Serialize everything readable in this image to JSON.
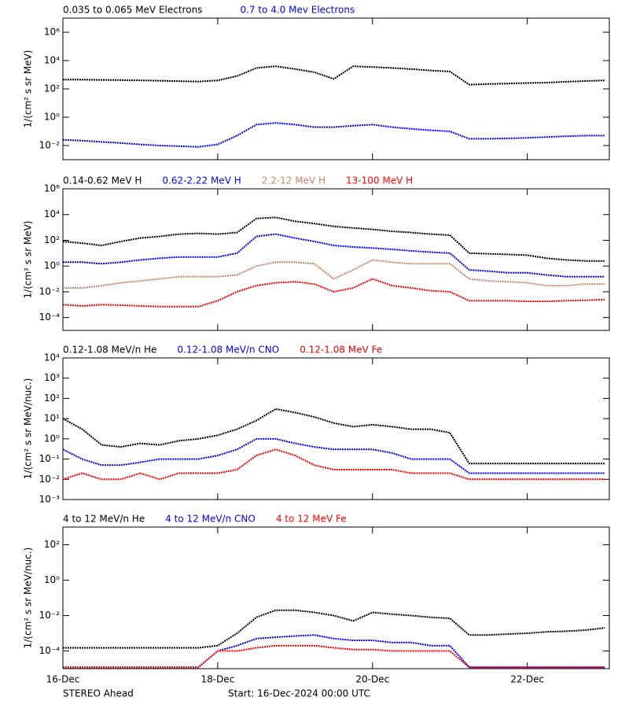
{
  "chart_data": [
    {
      "type": "scatter",
      "log_y": true,
      "ylabel": "1/(cm² s sr MeV)",
      "x": [
        0,
        0.25,
        0.5,
        0.75,
        1,
        1.25,
        1.5,
        1.75,
        2,
        2.25,
        2.5,
        2.75,
        3,
        3.25,
        3.5,
        3.75,
        4,
        4.25,
        4.5,
        4.75,
        5,
        5.25,
        5.5,
        5.75,
        6,
        6.25,
        6.5,
        6.75,
        7
      ],
      "xlim": [
        0,
        7.06
      ],
      "ylim": [
        0.001,
        10000000
      ],
      "yticks": [
        {
          "value": 0.01,
          "label": "10⁻²"
        },
        {
          "value": 1,
          "label": "10⁰"
        },
        {
          "value": 100,
          "label": "10²"
        },
        {
          "value": 10000,
          "label": "10⁴"
        },
        {
          "value": 1000000,
          "label": "10⁶"
        }
      ],
      "series": [
        {
          "name": "0.035 to 0.065 MeV Electrons",
          "color": "#000000",
          "values": [
            450,
            450,
            430,
            420,
            400,
            380,
            350,
            330,
            400,
            800,
            3000,
            4000,
            2500,
            1500,
            500,
            4000,
            3500,
            3000,
            2500,
            2000,
            1700,
            200,
            220,
            240,
            260,
            280,
            320,
            360,
            400
          ]
        },
        {
          "name": "0.7 to 4.0 Mev Electrons",
          "color": "#0000ff",
          "values": [
            0.025,
            0.022,
            0.018,
            0.015,
            0.012,
            0.01,
            0.009,
            0.008,
            0.012,
            0.05,
            0.3,
            0.4,
            0.3,
            0.2,
            0.2,
            0.25,
            0.3,
            0.2,
            0.15,
            0.12,
            0.1,
            0.03,
            0.03,
            0.032,
            0.035,
            0.04,
            0.045,
            0.05,
            0.05
          ]
        }
      ]
    },
    {
      "type": "scatter",
      "log_y": true,
      "ylabel": "1/(cm² s sr MeV)",
      "x": [
        0,
        0.25,
        0.5,
        0.75,
        1,
        1.25,
        1.5,
        1.75,
        2,
        2.25,
        2.5,
        2.75,
        3,
        3.25,
        3.5,
        3.75,
        4,
        4.25,
        4.5,
        4.75,
        5,
        5.25,
        5.5,
        5.75,
        6,
        6.25,
        6.5,
        6.75,
        7
      ],
      "xlim": [
        0,
        7.06
      ],
      "ylim": [
        1e-05,
        1000000
      ],
      "yticks": [
        {
          "value": 0.0001,
          "label": "10⁻⁴"
        },
        {
          "value": 0.01,
          "label": "10⁻²"
        },
        {
          "value": 1,
          "label": "10⁰"
        },
        {
          "value": 100,
          "label": "10²"
        },
        {
          "value": 10000,
          "label": "10⁴"
        },
        {
          "value": 1000000,
          "label": "10⁶"
        }
      ],
      "series": [
        {
          "name": "0.14-0.62 MeV H",
          "color": "#000000",
          "values": [
            80,
            60,
            40,
            80,
            150,
            200,
            300,
            350,
            300,
            400,
            5000,
            6000,
            3000,
            2000,
            1200,
            900,
            700,
            500,
            400,
            300,
            250,
            10,
            9,
            8,
            7,
            4,
            3,
            2.5,
            2.5
          ]
        },
        {
          "name": "0.62-2.22 MeV H",
          "color": "#0000ff",
          "values": [
            2,
            2,
            1.5,
            2,
            3,
            4,
            5,
            5,
            5,
            10,
            200,
            300,
            150,
            80,
            40,
            30,
            25,
            20,
            15,
            12,
            10,
            0.5,
            0.4,
            0.3,
            0.3,
            0.2,
            0.15,
            0.15,
            0.15
          ]
        },
        {
          "name": "2.2-12 MeV H",
          "color": "#c8866a",
          "values": [
            0.02,
            0.02,
            0.03,
            0.05,
            0.07,
            0.1,
            0.15,
            0.15,
            0.15,
            0.2,
            1,
            2,
            2,
            1.5,
            0.1,
            0.5,
            3,
            2,
            1.5,
            1.5,
            1.5,
            0.1,
            0.07,
            0.06,
            0.05,
            0.03,
            0.03,
            0.04,
            0.04
          ]
        },
        {
          "name": "13-100 MeV H",
          "color": "#ff0000",
          "values": [
            0.001,
            0.0008,
            0.001,
            0.0009,
            0.0008,
            0.0007,
            0.0007,
            0.0007,
            0.002,
            0.01,
            0.03,
            0.05,
            0.06,
            0.04,
            0.01,
            0.02,
            0.1,
            0.03,
            0.02,
            0.012,
            0.01,
            0.002,
            0.002,
            0.002,
            0.0018,
            0.0018,
            0.002,
            0.0022,
            0.0025
          ]
        }
      ]
    },
    {
      "type": "scatter",
      "log_y": true,
      "ylabel": "1/(cm² s sr MeV/nuc.)",
      "x": [
        0,
        0.25,
        0.5,
        0.75,
        1,
        1.25,
        1.5,
        1.75,
        2,
        2.25,
        2.5,
        2.75,
        3,
        3.25,
        3.5,
        3.75,
        4,
        4.25,
        4.5,
        4.75,
        5,
        5.25,
        5.5,
        5.75,
        6,
        6.25,
        6.5,
        6.75,
        7
      ],
      "xlim": [
        0,
        7.06
      ],
      "ylim": [
        0.001,
        10000
      ],
      "yticks": [
        {
          "value": 0.001,
          "label": "10⁻³"
        },
        {
          "value": 0.01,
          "label": "10⁻²"
        },
        {
          "value": 0.1,
          "label": "10⁻¹"
        },
        {
          "value": 1,
          "label": "10⁰"
        },
        {
          "value": 10,
          "label": "10¹"
        },
        {
          "value": 100,
          "label": "10²"
        },
        {
          "value": 1000,
          "label": "10³"
        },
        {
          "value": 10000,
          "label": "10⁴"
        }
      ],
      "series": [
        {
          "name": "0.12-1.08 MeV/n He",
          "color": "#000000",
          "values": [
            10,
            3,
            0.5,
            0.4,
            0.6,
            0.5,
            0.8,
            1,
            1.5,
            3,
            8,
            30,
            20,
            12,
            6,
            4,
            5,
            4,
            3,
            3,
            2,
            0.06,
            0.06,
            0.06,
            0.06,
            0.06,
            0.06,
            0.06,
            0.06
          ]
        },
        {
          "name": "0.12-1.08 MeV/n CNO",
          "color": "#0000ff",
          "values": [
            0.3,
            0.1,
            0.05,
            0.05,
            0.07,
            0.1,
            0.1,
            0.1,
            0.15,
            0.3,
            1,
            1,
            0.6,
            0.4,
            0.3,
            0.3,
            0.3,
            0.2,
            0.1,
            0.1,
            0.1,
            0.02,
            0.02,
            0.02,
            0.02,
            0.02,
            0.02,
            0.02,
            0.02
          ]
        },
        {
          "name": "0.12-1.08 MeV Fe",
          "color": "#ff0000",
          "values": [
            0.01,
            0.02,
            0.01,
            0.01,
            0.02,
            0.01,
            0.02,
            0.02,
            0.02,
            0.03,
            0.15,
            0.3,
            0.15,
            0.05,
            0.03,
            0.03,
            0.03,
            0.03,
            0.02,
            0.02,
            0.02,
            0.01,
            0.01,
            0.01,
            0.01,
            0.01,
            0.01,
            0.01,
            0.01
          ]
        }
      ]
    },
    {
      "type": "scatter",
      "log_y": true,
      "ylabel": "1/(cm² s sr MeV/nuc.)",
      "x": [
        0,
        0.25,
        0.5,
        0.75,
        1,
        1.25,
        1.5,
        1.75,
        2,
        2.25,
        2.5,
        2.75,
        3,
        3.25,
        3.5,
        3.75,
        4,
        4.25,
        4.5,
        4.75,
        5,
        5.25,
        5.5,
        5.75,
        6,
        6.25,
        6.5,
        6.75,
        7
      ],
      "xlim": [
        0,
        7.06
      ],
      "ylim": [
        1e-05,
        1000
      ],
      "xticks": [
        {
          "value": 0,
          "label": "16-Dec"
        },
        {
          "value": 2,
          "label": "18-Dec"
        },
        {
          "value": 4,
          "label": "20-Dec"
        },
        {
          "value": 6,
          "label": "22-Dec"
        }
      ],
      "yticks": [
        {
          "value": 0.0001,
          "label": "10⁻⁴"
        },
        {
          "value": 0.01,
          "label": "10⁻²"
        },
        {
          "value": 1,
          "label": "10⁰"
        },
        {
          "value": 100,
          "label": "10²"
        }
      ],
      "series": [
        {
          "name": "4 to 12 MeV/n He",
          "color": "#000000",
          "values": [
            0.00015,
            0.00015,
            0.00015,
            0.00015,
            0.00015,
            0.00015,
            0.00015,
            0.00015,
            0.0002,
            0.001,
            0.008,
            0.02,
            0.02,
            0.015,
            0.01,
            0.005,
            0.015,
            0.012,
            0.01,
            0.008,
            0.007,
            0.0008,
            0.0008,
            0.0009,
            0.001,
            0.0012,
            0.0013,
            0.0015,
            0.002
          ]
        },
        {
          "name": "4 to 12 MeV/n CNO",
          "color": "#0000ff",
          "values": [
            1.2e-05,
            1.2e-05,
            1.2e-05,
            1.2e-05,
            1.2e-05,
            1.2e-05,
            1.2e-05,
            1.2e-05,
            0.0001,
            0.0002,
            0.0005,
            0.0006,
            0.0007,
            0.0008,
            0.0005,
            0.0004,
            0.0004,
            0.0003,
            0.0003,
            0.0002,
            0.0002,
            1.2e-05,
            1.2e-05,
            1.2e-05,
            1.2e-05,
            1.2e-05,
            1.2e-05,
            1.2e-05,
            1.2e-05
          ]
        },
        {
          "name": "4 to 12 MeV Fe",
          "color": "#ff0000",
          "values": [
            1.2e-05,
            1.2e-05,
            1.2e-05,
            1.2e-05,
            1.2e-05,
            1.2e-05,
            1.2e-05,
            1.2e-05,
            0.0001,
            0.0001,
            0.00015,
            0.0002,
            0.0002,
            0.0002,
            0.00015,
            0.00012,
            0.00012,
            0.0001,
            0.0001,
            0.0001,
            0.0001,
            1.2e-05,
            1.2e-05,
            1.2e-05,
            1.2e-05,
            1.2e-05,
            1.2e-05,
            1.2e-05,
            1.2e-05
          ]
        }
      ]
    }
  ],
  "footer": {
    "mission": "STEREO Ahead",
    "start": "Start: 16-Dec-2024 00:00 UTC"
  }
}
